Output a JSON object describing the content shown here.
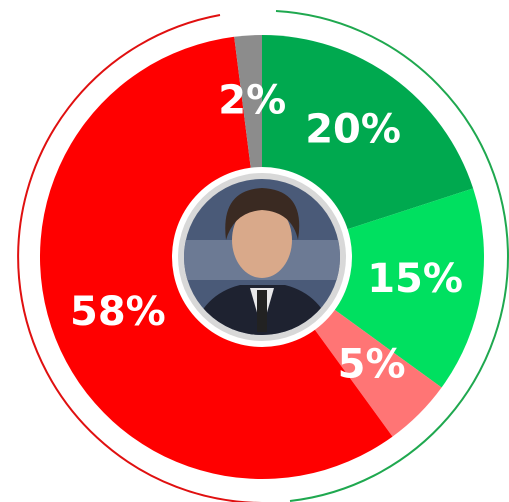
{
  "chart_data": {
    "type": "pie",
    "categories": [
      null,
      null,
      null,
      null,
      null
    ],
    "values": [
      20,
      15,
      5,
      58,
      2
    ],
    "value_labels": [
      "20%",
      "15%",
      "5%",
      "58%",
      "2%"
    ],
    "colors": [
      "#00a94f",
      "#00e060",
      "#ff7575",
      "#ff0000",
      "#8c8c8c"
    ],
    "start_angle": 0,
    "direction": "clockwise"
  }
}
